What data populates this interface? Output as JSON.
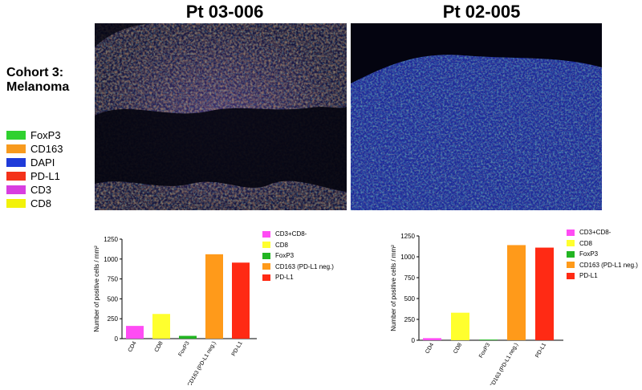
{
  "panels": [
    {
      "title": "Pt 03-006"
    },
    {
      "title": "Pt 02-005"
    }
  ],
  "cohort": {
    "line1": "Cohort 3:",
    "line2": "Melanoma"
  },
  "channel_legend": [
    {
      "label": "FoxP3",
      "color": "#2fd12f"
    },
    {
      "label": "CD163",
      "color": "#f79a1e"
    },
    {
      "label": "DAPI",
      "color": "#1f3bd9"
    },
    {
      "label": "PD-L1",
      "color": "#f4321a"
    },
    {
      "label": "CD3",
      "color": "#d83ee0"
    },
    {
      "label": "CD8",
      "color": "#f2f20a"
    }
  ],
  "chart_data": [
    {
      "type": "bar",
      "categories": [
        "CD4",
        "CD8",
        "FoxP3",
        "CD163 (PD-L1 neg.)",
        "PD-L1"
      ],
      "values": [
        160,
        310,
        35,
        1060,
        955
      ],
      "colors": [
        "#ff4cf4",
        "#ffff2e",
        "#22b522",
        "#ff9a1a",
        "#ff2a14"
      ],
      "ylabel": "Number of positive cells / mm²",
      "ylim": [
        0,
        1250
      ],
      "yticks": [
        "0",
        "250",
        "500",
        "750",
        "1000",
        "1250"
      ],
      "legend": [
        "CD3+CD8-",
        "CD8",
        "FoxP3",
        "CD163 (PD-L1 neg.)",
        "PD-L1"
      ]
    },
    {
      "type": "bar",
      "categories": [
        "CD4",
        "CD8",
        "FoxP3",
        "CD163 (PD-L1 neg.)",
        "PD-L1"
      ],
      "values": [
        25,
        330,
        8,
        1140,
        1110
      ],
      "colors": [
        "#ff4cf4",
        "#ffff2e",
        "#22b522",
        "#ff9a1a",
        "#ff2a14"
      ],
      "ylabel": "Number of positive cells / mm²",
      "ylim": [
        0,
        1250
      ],
      "yticks": [
        "0",
        "250",
        "500",
        "750",
        "1000",
        "1250"
      ],
      "legend": [
        "CD3+CD8-",
        "CD8",
        "FoxP3",
        "CD163 (PD-L1 neg.)",
        "PD-L1"
      ]
    }
  ]
}
